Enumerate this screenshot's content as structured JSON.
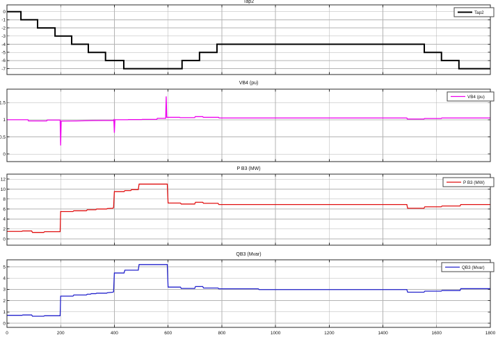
{
  "figure": {
    "background": "#ffffff",
    "grid_color": "#b3b3b3",
    "axis_color": "#2a2a2a"
  },
  "chart_data": [
    {
      "id": "tap2",
      "type": "line",
      "title": "Tap2",
      "legend_label": "Tap2",
      "color": "#000000",
      "line_width": 2,
      "xlim": [
        0,
        1800
      ],
      "ylim": [
        -7.72,
        0.83
      ],
      "xticks": [
        0,
        200,
        400,
        600,
        800,
        1000,
        1200,
        1400,
        1600,
        1800
      ],
      "xtick_labels": [
        "0",
        "200",
        "400",
        "600",
        "800",
        "1000",
        "1200",
        "1400",
        "1600",
        "1800"
      ],
      "show_x_tick_labels": false,
      "yticks": [
        0,
        -1,
        -2,
        -3,
        -4,
        -5,
        -6,
        -7
      ],
      "ytick_labels": [
        "0",
        "-1",
        "-2",
        "-3",
        "-4",
        "-5",
        "-6",
        "-7"
      ],
      "grid": true,
      "legend_position": "top-right",
      "points": [
        [
          0,
          0
        ],
        [
          52,
          0
        ],
        [
          52,
          -1
        ],
        [
          114,
          -1
        ],
        [
          114,
          -2
        ],
        [
          179,
          -2
        ],
        [
          179,
          -3
        ],
        [
          241,
          -3
        ],
        [
          241,
          -4
        ],
        [
          303,
          -4
        ],
        [
          303,
          -5
        ],
        [
          367,
          -5
        ],
        [
          367,
          -6
        ],
        [
          435,
          -6
        ],
        [
          435,
          -7
        ],
        [
          652,
          -7
        ],
        [
          652,
          -6
        ],
        [
          717,
          -6
        ],
        [
          717,
          -5
        ],
        [
          782,
          -5
        ],
        [
          782,
          -4
        ],
        [
          1554,
          -4
        ],
        [
          1554,
          -5
        ],
        [
          1618,
          -5
        ],
        [
          1618,
          -6
        ],
        [
          1683,
          -6
        ],
        [
          1683,
          -7
        ],
        [
          1800,
          -7
        ]
      ]
    },
    {
      "id": "vb4",
      "type": "line",
      "title": "VB4 (pu)",
      "legend_label": "VB4 (pu)",
      "color": "#ee00ee",
      "line_width": 1.3,
      "xlim": [
        0,
        1800
      ],
      "ylim": [
        -0.22,
        1.89
      ],
      "xticks": [
        0,
        200,
        400,
        600,
        800,
        1000,
        1200,
        1400,
        1600,
        1800
      ],
      "xtick_labels": [
        "0",
        "200",
        "400",
        "600",
        "800",
        "1000",
        "1200",
        "1400",
        "1600",
        "1800"
      ],
      "show_x_tick_labels": false,
      "yticks": [
        0,
        0.5,
        1,
        1.5
      ],
      "ytick_labels": [
        "0",
        "0.5",
        "1",
        "1.5"
      ],
      "grid": true,
      "legend_position": "top-right",
      "points": [
        [
          0,
          1.0
        ],
        [
          78,
          1.0
        ],
        [
          80,
          0.965
        ],
        [
          148,
          0.965
        ],
        [
          150,
          0.99
        ],
        [
          198,
          0.99
        ],
        [
          200,
          0.25
        ],
        [
          202,
          0.96
        ],
        [
          260,
          0.965
        ],
        [
          320,
          0.975
        ],
        [
          396,
          0.98
        ],
        [
          398,
          1.0
        ],
        [
          400,
          0.62
        ],
        [
          402,
          1.0
        ],
        [
          450,
          1.0
        ],
        [
          452,
          1.005
        ],
        [
          502,
          1.005
        ],
        [
          504,
          1.01
        ],
        [
          558,
          1.01
        ],
        [
          560,
          1.04
        ],
        [
          591,
          1.04
        ],
        [
          593,
          1.68
        ],
        [
          595,
          1.07
        ],
        [
          643,
          1.07
        ],
        [
          645,
          1.06
        ],
        [
          699,
          1.06
        ],
        [
          701,
          1.09
        ],
        [
          729,
          1.09
        ],
        [
          731,
          1.07
        ],
        [
          788,
          1.07
        ],
        [
          790,
          1.05
        ],
        [
          1489,
          1.05
        ],
        [
          1491,
          1.02
        ],
        [
          1553,
          1.02
        ],
        [
          1555,
          1.035
        ],
        [
          1617,
          1.035
        ],
        [
          1619,
          1.05
        ],
        [
          1800,
          1.05
        ]
      ]
    },
    {
      "id": "pb3",
      "type": "line",
      "title": "P B3 (MW)",
      "legend_label": "P B3 (MW)",
      "color": "#e01010",
      "line_width": 1.3,
      "xlim": [
        0,
        1800
      ],
      "ylim": [
        -1.26,
        13.0
      ],
      "xticks": [
        0,
        200,
        400,
        600,
        800,
        1000,
        1200,
        1400,
        1600,
        1800
      ],
      "xtick_labels": [
        "0",
        "200",
        "400",
        "600",
        "800",
        "1000",
        "1200",
        "1400",
        "1600",
        "1800"
      ],
      "show_x_tick_labels": false,
      "yticks": [
        0,
        2,
        4,
        6,
        8,
        10,
        12
      ],
      "ytick_labels": [
        "0",
        "2",
        "4",
        "6",
        "8",
        "10",
        "12"
      ],
      "grid": true,
      "legend_position": "top-right",
      "points": [
        [
          0,
          1.5
        ],
        [
          55,
          1.5
        ],
        [
          58,
          1.6
        ],
        [
          92,
          1.6
        ],
        [
          95,
          1.3
        ],
        [
          137,
          1.3
        ],
        [
          140,
          1.45
        ],
        [
          198,
          1.45
        ],
        [
          200,
          5.5
        ],
        [
          246,
          5.5
        ],
        [
          249,
          5.65
        ],
        [
          296,
          5.65
        ],
        [
          299,
          5.85
        ],
        [
          331,
          5.85
        ],
        [
          334,
          6.0
        ],
        [
          371,
          6.0
        ],
        [
          374,
          6.1
        ],
        [
          394,
          6.15
        ],
        [
          397,
          6.3
        ],
        [
          400,
          9.5
        ],
        [
          436,
          9.5
        ],
        [
          439,
          9.7
        ],
        [
          461,
          9.7
        ],
        [
          464,
          9.9
        ],
        [
          489,
          9.9
        ],
        [
          492,
          11.0
        ],
        [
          597,
          11.0
        ],
        [
          600,
          7.2
        ],
        [
          646,
          7.2
        ],
        [
          649,
          7.0
        ],
        [
          699,
          7.0
        ],
        [
          702,
          7.35
        ],
        [
          729,
          7.35
        ],
        [
          732,
          7.15
        ],
        [
          786,
          7.15
        ],
        [
          789,
          6.9
        ],
        [
          1489,
          6.9
        ],
        [
          1492,
          6.15
        ],
        [
          1553,
          6.15
        ],
        [
          1556,
          6.45
        ],
        [
          1617,
          6.45
        ],
        [
          1620,
          6.6
        ],
        [
          1687,
          6.6
        ],
        [
          1690,
          6.9
        ],
        [
          1800,
          6.9
        ]
      ]
    },
    {
      "id": "qb3",
      "type": "line",
      "title": "QB3 (Mvar)",
      "legend_label": "QB3 (Mvar)",
      "color": "#2222cc",
      "line_width": 1.3,
      "xlim": [
        0,
        1800
      ],
      "ylim": [
        -0.37,
        5.62
      ],
      "xticks": [
        0,
        200,
        400,
        600,
        800,
        1000,
        1200,
        1400,
        1600,
        1800
      ],
      "xtick_labels": [
        "0",
        "200",
        "400",
        "600",
        "800",
        "1000",
        "1200",
        "1400",
        "1600",
        "1800"
      ],
      "show_x_tick_labels": true,
      "yticks": [
        0,
        1,
        2,
        3,
        4,
        5
      ],
      "ytick_labels": [
        "0",
        "1",
        "2",
        "3",
        "4",
        "5"
      ],
      "grid": true,
      "legend_position": "top-right",
      "points": [
        [
          0,
          0.7
        ],
        [
          56,
          0.7
        ],
        [
          59,
          0.73
        ],
        [
          92,
          0.73
        ],
        [
          95,
          0.62
        ],
        [
          137,
          0.62
        ],
        [
          140,
          0.66
        ],
        [
          198,
          0.66
        ],
        [
          200,
          2.4
        ],
        [
          246,
          2.4
        ],
        [
          249,
          2.5
        ],
        [
          296,
          2.5
        ],
        [
          299,
          2.57
        ],
        [
          311,
          2.57
        ],
        [
          314,
          2.62
        ],
        [
          331,
          2.62
        ],
        [
          334,
          2.66
        ],
        [
          371,
          2.66
        ],
        [
          374,
          2.7
        ],
        [
          394,
          2.75
        ],
        [
          397,
          2.78
        ],
        [
          400,
          4.45
        ],
        [
          436,
          4.45
        ],
        [
          439,
          4.7
        ],
        [
          489,
          4.7
        ],
        [
          492,
          5.2
        ],
        [
          597,
          5.2
        ],
        [
          600,
          3.2
        ],
        [
          646,
          3.2
        ],
        [
          649,
          3.08
        ],
        [
          699,
          3.08
        ],
        [
          702,
          3.25
        ],
        [
          729,
          3.25
        ],
        [
          732,
          3.12
        ],
        [
          786,
          3.12
        ],
        [
          789,
          3.05
        ],
        [
          936,
          3.05
        ],
        [
          939,
          2.98
        ],
        [
          1489,
          2.98
        ],
        [
          1492,
          2.75
        ],
        [
          1553,
          2.75
        ],
        [
          1556,
          2.84
        ],
        [
          1617,
          2.84
        ],
        [
          1620,
          2.9
        ],
        [
          1687,
          2.9
        ],
        [
          1690,
          3.06
        ],
        [
          1800,
          3.06
        ]
      ]
    }
  ]
}
